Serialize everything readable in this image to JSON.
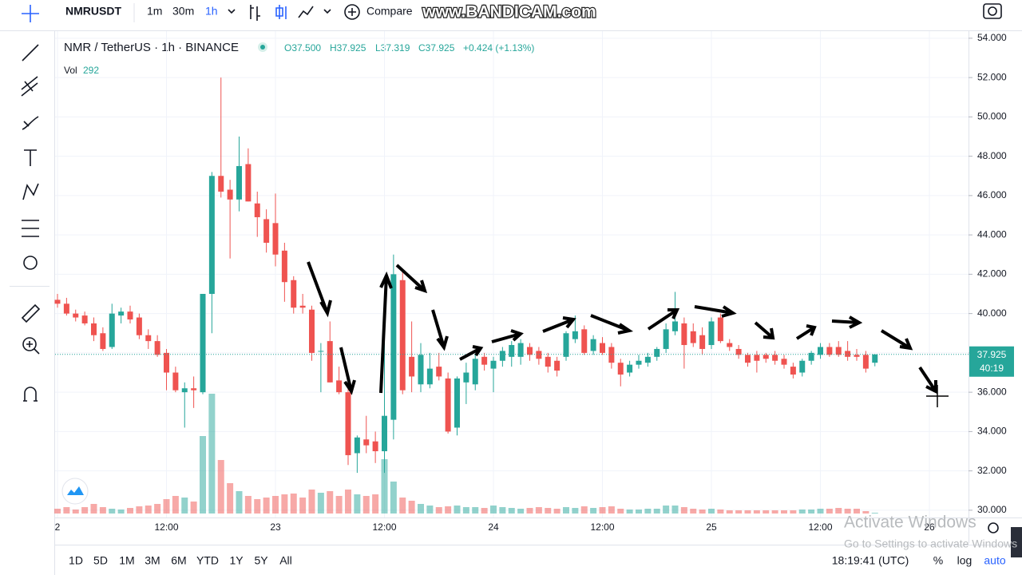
{
  "toolbar": {
    "symbol": "NMRUSDT",
    "intervals": [
      "1m",
      "30m",
      "1h"
    ],
    "compare": "Compare",
    "watermark": "www.BANDICAM.com"
  },
  "legend": {
    "pair": "NMR / TetherUS · 1h · BINANCE",
    "open": "O37.500",
    "high": "H37.925",
    "low": "L37.319",
    "close": "C37.925",
    "change": "+0.424 (+1.13%)",
    "vol_label": "Vol",
    "vol_value": "292"
  },
  "price_tag": {
    "price": "37.925",
    "countdown": "40:19"
  },
  "chart_data": {
    "type": "candlestick",
    "up_color": "#26a69a",
    "down_color": "#ef5350",
    "categories": [
      "2",
      null,
      null,
      null,
      null,
      null,
      null,
      null,
      null,
      null,
      null,
      null,
      "12:00",
      null,
      null,
      null,
      null,
      null,
      null,
      null,
      null,
      null,
      null,
      null,
      "23",
      null,
      null,
      null,
      null,
      null,
      null,
      null,
      null,
      null,
      null,
      null,
      "12:00",
      null,
      null,
      null,
      null,
      null,
      null,
      null,
      null,
      null,
      null,
      null,
      "24",
      null,
      null,
      null,
      null,
      null,
      null,
      null,
      null,
      null,
      null,
      null,
      "12:00",
      null,
      null,
      null,
      null,
      null,
      null,
      null,
      null,
      null,
      null,
      null,
      "25",
      null,
      null,
      null,
      null,
      null,
      null,
      null,
      null,
      null,
      null,
      null,
      "12:00",
      null,
      null,
      null,
      null,
      null,
      null,
      null,
      null,
      null,
      null,
      null,
      "26"
    ],
    "open": [
      40.7,
      40.5,
      40.0,
      39.9,
      39.5,
      39.0,
      38.3,
      39.9,
      40.1,
      39.8,
      38.9,
      38.6,
      38.0,
      37.0,
      36.0,
      36.2,
      36.0,
      41.0,
      47.0,
      46.3,
      45.8,
      47.6,
      45.6,
      44.8,
      44.6,
      43.2,
      41.7,
      40.4,
      40.2,
      38.1,
      38.6,
      36.6,
      36.0,
      32.9,
      33.6,
      33.5,
      33.0,
      34.6,
      41.7,
      37.8,
      36.4,
      36.4,
      37.3,
      36.7,
      34.2,
      36.5,
      36.4,
      37.8,
      37.2,
      37.6,
      37.8,
      37.8,
      38.3,
      38.1,
      37.8,
      37.6,
      37.8,
      38.7,
      39.2,
      38.1,
      38.5,
      38.3,
      37.5,
      37.0,
      37.4,
      37.5,
      37.8,
      38.2,
      39.1,
      39.5,
      39.1,
      38.9,
      38.4,
      39.8,
      38.5,
      38.2,
      37.9,
      37.9,
      37.9,
      37.9,
      37.7,
      37.3,
      37.0,
      37.6,
      37.9,
      38.3,
      38.3,
      38.1,
      37.9,
      37.9,
      37.5,
      null,
      null,
      null,
      null,
      null,
      null
    ],
    "high": [
      41.0,
      40.8,
      40.2,
      40.1,
      39.8,
      39.3,
      40.5,
      40.3,
      40.4,
      40.0,
      39.2,
      38.9,
      38.2,
      37.3,
      36.5,
      36.8,
      41.0,
      47.2,
      52.0,
      46.8,
      49.0,
      48.4,
      46.2,
      45.3,
      46.1,
      43.6,
      41.9,
      41.0,
      40.4,
      38.5,
      39.6,
      37.3,
      36.3,
      33.8,
      34.8,
      34.0,
      38.5,
      43.0,
      42.2,
      39.6,
      38.5,
      38.0,
      38.0,
      37.0,
      36.8,
      37.5,
      37.9,
      38.0,
      37.8,
      38.3,
      38.6,
      38.7,
      38.5,
      38.3,
      38.0,
      37.8,
      39.1,
      39.9,
      39.4,
      38.9,
      38.8,
      38.5,
      37.7,
      37.6,
      37.9,
      38.0,
      38.3,
      39.5,
      41.1,
      39.8,
      39.5,
      39.3,
      39.8,
      40.0,
      38.7,
      38.4,
      38.0,
      38.1,
      38.0,
      38.1,
      37.9,
      37.5,
      37.7,
      38.1,
      38.5,
      38.5,
      38.6,
      38.6,
      38.2,
      38.1,
      37.925,
      null,
      null,
      null,
      null,
      null,
      null
    ],
    "low": [
      40.3,
      39.9,
      39.6,
      39.4,
      38.6,
      38.1,
      38.2,
      39.5,
      39.5,
      38.7,
      38.2,
      37.8,
      36.1,
      36.0,
      34.2,
      35.2,
      35.9,
      39.0,
      45.9,
      42.8,
      45.2,
      45.7,
      43.9,
      43.1,
      42.4,
      40.6,
      40.0,
      40.0,
      37.6,
      36.0,
      36.5,
      35.9,
      32.3,
      31.9,
      32.9,
      32.4,
      31.9,
      33.6,
      35.9,
      36.0,
      36.0,
      36.2,
      36.6,
      33.9,
      33.8,
      35.4,
      36.1,
      37.1,
      36.0,
      37.3,
      37.3,
      37.4,
      37.6,
      37.4,
      37.0,
      36.8,
      37.6,
      38.5,
      37.9,
      37.9,
      37.9,
      37.2,
      36.3,
      36.8,
      37.2,
      37.3,
      37.6,
      38.0,
      38.9,
      37.2,
      38.3,
      37.9,
      38.2,
      38.5,
      38.1,
      37.7,
      37.3,
      37.0,
      37.5,
      37.4,
      37.2,
      36.7,
      36.8,
      37.4,
      37.7,
      37.8,
      37.8,
      37.6,
      37.6,
      37.0,
      37.319,
      null,
      null,
      null,
      null,
      null,
      null
    ],
    "close": [
      40.5,
      40.0,
      39.8,
      39.5,
      38.9,
      38.2,
      40.0,
      40.1,
      39.7,
      38.9,
      38.6,
      37.9,
      37.0,
      36.1,
      36.2,
      36.1,
      41.0,
      47.0,
      46.2,
      45.8,
      47.5,
      45.7,
      44.9,
      43.6,
      43.0,
      41.6,
      40.3,
      40.3,
      38.0,
      38.1,
      36.5,
      36.0,
      32.8,
      33.7,
      33.3,
      33.0,
      34.8,
      42.0,
      36.1,
      36.8,
      37.9,
      37.2,
      36.8,
      34.0,
      36.7,
      37.0,
      37.7,
      37.4,
      37.6,
      38.1,
      38.4,
      38.5,
      37.9,
      37.7,
      37.3,
      37.1,
      39.0,
      39.1,
      38.0,
      38.7,
      38.0,
      37.5,
      36.9,
      37.4,
      37.6,
      37.8,
      38.2,
      39.2,
      39.6,
      38.4,
      38.5,
      38.2,
      39.6,
      38.6,
      38.3,
      37.9,
      37.5,
      37.6,
      37.7,
      37.6,
      37.4,
      36.9,
      37.6,
      38.0,
      38.3,
      37.9,
      37.9,
      37.8,
      37.8,
      37.2,
      37.925,
      null,
      null,
      null,
      null,
      null,
      null
    ],
    "volume": [
      1800,
      2400,
      1500,
      2400,
      3600,
      2400,
      1800,
      1500,
      2100,
      2700,
      3000,
      3600,
      5400,
      6600,
      6000,
      4500,
      29100,
      45000,
      20100,
      11400,
      8400,
      6600,
      5400,
      6000,
      6600,
      7200,
      7500,
      6000,
      9000,
      7800,
      8400,
      6600,
      9000,
      7200,
      6600,
      7200,
      20400,
      12000,
      6000,
      4800,
      3600,
      3000,
      2400,
      2700,
      3000,
      2400,
      2400,
      2100,
      3000,
      2400,
      2100,
      1800,
      2100,
      2400,
      2100,
      1800,
      2400,
      2100,
      2700,
      2100,
      2400,
      2700,
      1800,
      1500,
      1500,
      1800,
      1800,
      3000,
      3000,
      2400,
      1800,
      1500,
      1800,
      1500,
      1200,
      1200,
      1200,
      1200,
      1200,
      1200,
      1200,
      1200,
      1500,
      1500,
      1800,
      1800,
      2100,
      1800,
      1800,
      900,
      292,
      null,
      null,
      null,
      null,
      null,
      null
    ],
    "ylim": [
      29.63,
      54.32
    ],
    "yticks": [
      {
        "value": 30,
        "label": "30.000"
      },
      {
        "value": 32,
        "label": "32.000"
      },
      {
        "value": 34,
        "label": "34.000"
      },
      {
        "value": 36,
        "label": "36.000"
      },
      {
        "value": 38,
        "label": "38.000"
      },
      {
        "value": 40,
        "label": "40.000"
      },
      {
        "value": 42,
        "label": "42.000"
      },
      {
        "value": 44,
        "label": "44.000"
      },
      {
        "value": 46,
        "label": "46.000"
      },
      {
        "value": 48,
        "label": "48.000"
      },
      {
        "value": 50,
        "label": "50.000"
      },
      {
        "value": 52,
        "label": "52.000"
      },
      {
        "value": 54,
        "label": "54.000"
      }
    ],
    "last_price": 37.925,
    "grid": true
  },
  "bottom_bar": {
    "ranges": [
      "1D",
      "5D",
      "1M",
      "3M",
      "6M",
      "YTD",
      "1Y",
      "5Y",
      "All"
    ],
    "clock": "18:19:41 (UTC)",
    "percent": "%",
    "log": "log",
    "auto": "auto"
  },
  "os_notice": {
    "title": "Activate Windows",
    "subtitle": "Go to Settings to activate Windows"
  }
}
